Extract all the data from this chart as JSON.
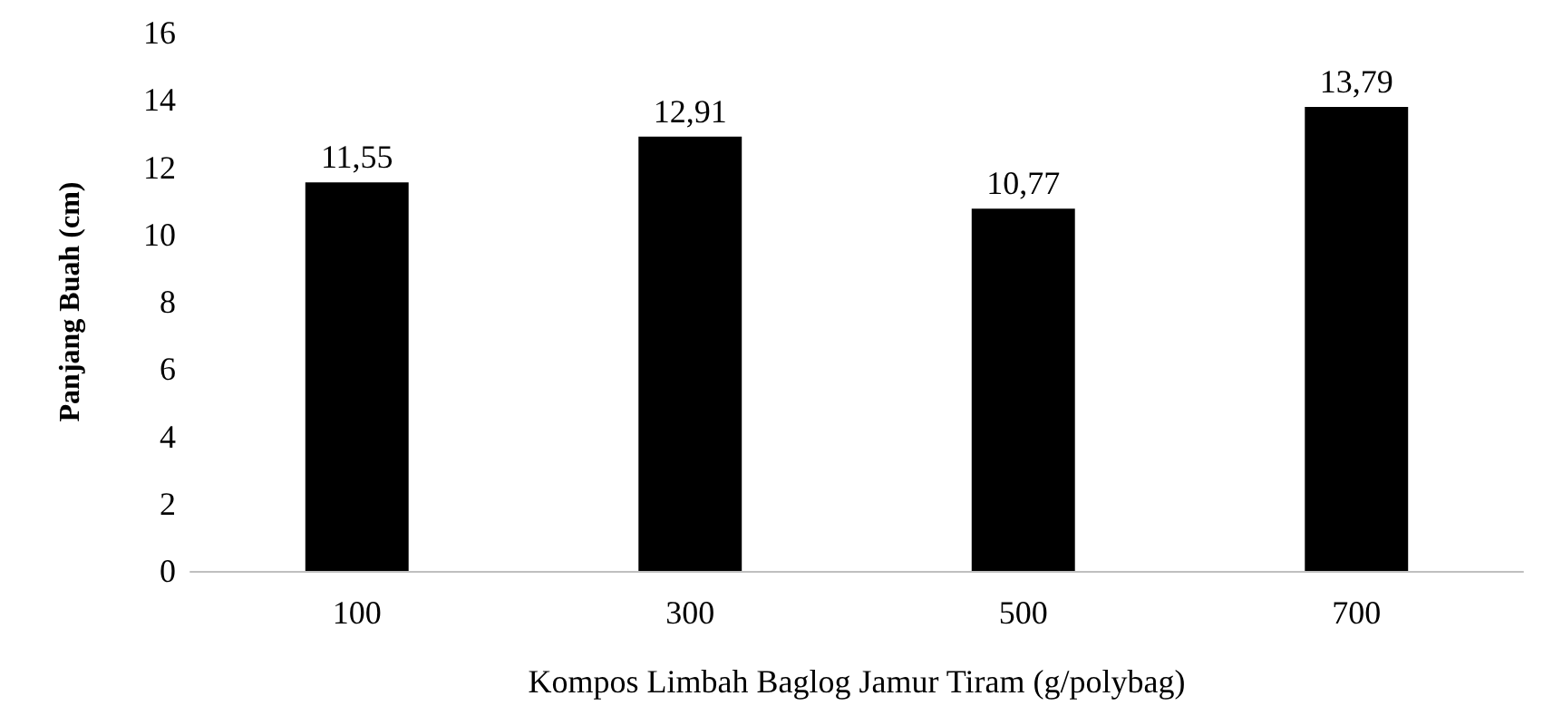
{
  "chart_data": {
    "type": "bar",
    "xlabel": "Kompos Limbah Baglog Jamur Tiram (g/polybag)",
    "ylabel": "Panjang Buah (cm)",
    "categories": [
      "100",
      "300",
      "500",
      "700"
    ],
    "values": [
      11.55,
      12.91,
      10.77,
      13.79
    ],
    "value_labels": [
      "11,55",
      "12,91",
      "10,77",
      "13,79"
    ],
    "color": "#000000",
    "ylim": [
      0,
      16
    ],
    "yticks": [
      0,
      2,
      4,
      6,
      8,
      10,
      12,
      14,
      16
    ],
    "grid": false
  }
}
